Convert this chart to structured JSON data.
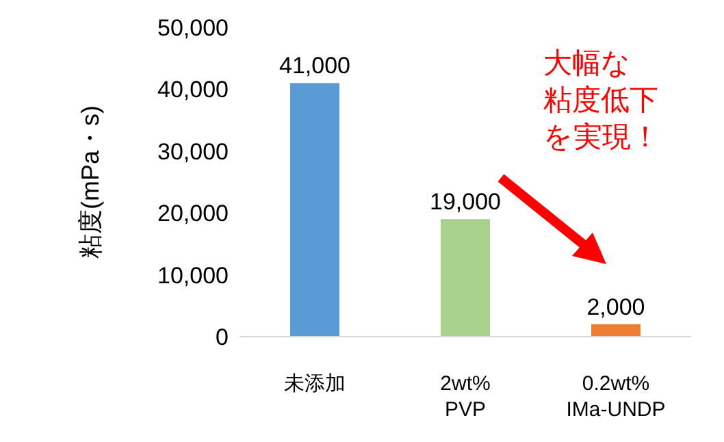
{
  "chart_data": {
    "type": "bar",
    "ylabel": "粘度(mPa・s)",
    "categories": [
      "未添加",
      "2wt%\nPVP",
      "0.2wt%\nIMa-UNDP"
    ],
    "values": [
      41000,
      19000,
      2000
    ],
    "colors": [
      "#5b9bd5",
      "#a9d18e",
      "#ed7d31"
    ],
    "value_labels": [
      "41,000",
      "19,000",
      "2,000"
    ],
    "ylim": [
      0,
      50000
    ],
    "yticks": [
      {
        "value": 0,
        "label": "0"
      },
      {
        "value": 10000,
        "label": "10,000"
      },
      {
        "value": 20000,
        "label": "20,000"
      },
      {
        "value": 30000,
        "label": "30,000"
      },
      {
        "value": 40000,
        "label": "40,000"
      },
      {
        "value": 50000,
        "label": "50,000"
      }
    ],
    "annotations": [
      "大幅な",
      "粘度低下",
      "を実現！"
    ],
    "grid": false
  }
}
